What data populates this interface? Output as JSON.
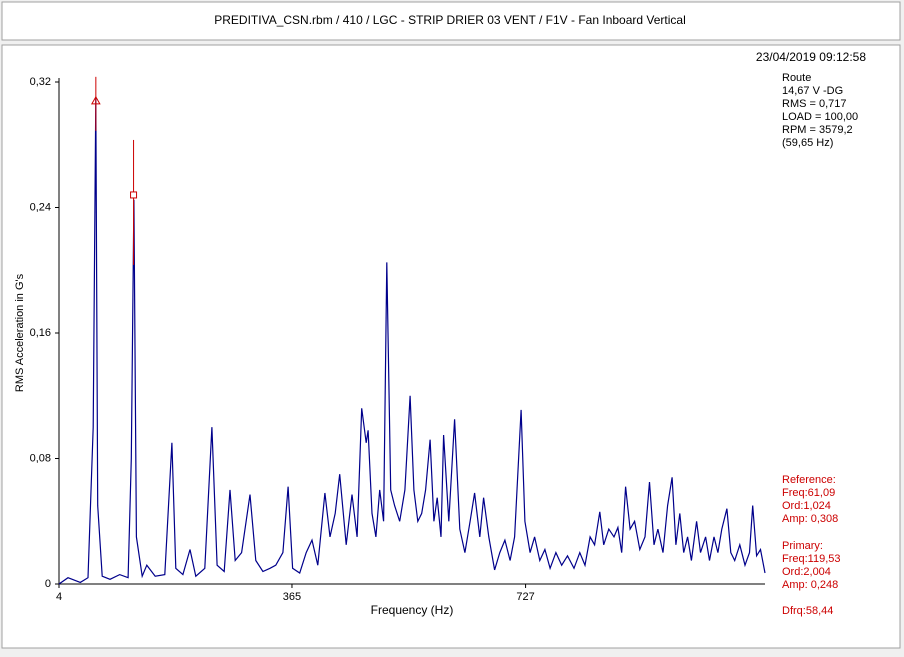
{
  "chart_data": {
    "type": "line",
    "title": "PREDITIVA_CSN.rbm / 410 / LGC - STRIP DRIER 03 VENT / F1V - Fan Inboard Vertical",
    "timestamp": "23/04/2019 09:12:58",
    "info": [
      "Route",
      "14,67 V -DG",
      "RMS = 0,717",
      "LOAD = 100,00",
      "RPM = 3579,2",
      "(59,65 Hz)"
    ],
    "x_label": "Frequency (Hz)",
    "y_label": "RMS Acceleration in G's",
    "color": "#00008b",
    "xlim": [
      4,
      1098
    ],
    "xticks": [
      4,
      365,
      727
    ],
    "ylim": [
      0,
      0.32
    ],
    "yticks": [
      0,
      {
        "value": 0.08,
        "label": "0,08"
      },
      {
        "value": 0.16,
        "label": "0,16"
      },
      {
        "value": 0.24,
        "label": "0,24"
      },
      {
        "value": 0.32,
        "label": "0,32"
      }
    ],
    "x": [
      4,
      18,
      37,
      49,
      57,
      61,
      64,
      71,
      83,
      98,
      111,
      116,
      120,
      124,
      133,
      140,
      153,
      168,
      179,
      185,
      196,
      207,
      216,
      230,
      241,
      249,
      260,
      269,
      277,
      287,
      300,
      309,
      320,
      331,
      340,
      351,
      359,
      366,
      377,
      387,
      396,
      405,
      416,
      424,
      432,
      439,
      449,
      458,
      466,
      473,
      480,
      483,
      489,
      495,
      501,
      507,
      512,
      518,
      524,
      532,
      540,
      548,
      554,
      560,
      566,
      572,
      579,
      585,
      590,
      596,
      600,
      608,
      617,
      625,
      633,
      641,
      648,
      656,
      662,
      670,
      679,
      687,
      695,
      703,
      710,
      720,
      726,
      734,
      741,
      749,
      757,
      765,
      774,
      783,
      792,
      802,
      811,
      819,
      827,
      834,
      842,
      848,
      856,
      864,
      870,
      876,
      882,
      889,
      896,
      904,
      912,
      919,
      926,
      932,
      940,
      947,
      954,
      960,
      966,
      972,
      978,
      984,
      992,
      998,
      1006,
      1012,
      1019,
      1025,
      1031,
      1039,
      1045,
      1051,
      1059,
      1067,
      1074,
      1079,
      1085,
      1091,
      1098
    ],
    "values": [
      0,
      0.004,
      0.001,
      0.004,
      0.1,
      0.31,
      0.05,
      0.005,
      0.003,
      0.006,
      0.004,
      0.08,
      0.245,
      0.03,
      0.005,
      0.012,
      0.005,
      0.006,
      0.09,
      0.01,
      0.006,
      0.022,
      0.005,
      0.01,
      0.1,
      0.012,
      0.008,
      0.06,
      0.015,
      0.02,
      0.057,
      0.015,
      0.008,
      0.01,
      0.012,
      0.02,
      0.062,
      0.01,
      0.007,
      0.02,
      0.028,
      0.012,
      0.058,
      0.03,
      0.045,
      0.07,
      0.025,
      0.057,
      0.03,
      0.112,
      0.09,
      0.098,
      0.045,
      0.03,
      0.06,
      0.04,
      0.205,
      0.06,
      0.05,
      0.04,
      0.06,
      0.12,
      0.06,
      0.04,
      0.045,
      0.06,
      0.092,
      0.04,
      0.055,
      0.03,
      0.095,
      0.04,
      0.105,
      0.035,
      0.02,
      0.04,
      0.058,
      0.03,
      0.055,
      0.03,
      0.009,
      0.02,
      0.028,
      0.015,
      0.03,
      0.111,
      0.04,
      0.02,
      0.03,
      0.015,
      0.022,
      0.01,
      0.02,
      0.012,
      0.018,
      0.01,
      0.02,
      0.012,
      0.03,
      0.025,
      0.046,
      0.025,
      0.035,
      0.03,
      0.036,
      0.02,
      0.062,
      0.035,
      0.04,
      0.022,
      0.03,
      0.065,
      0.025,
      0.035,
      0.02,
      0.05,
      0.068,
      0.025,
      0.045,
      0.02,
      0.03,
      0.015,
      0.04,
      0.02,
      0.03,
      0.015,
      0.03,
      0.02,
      0.035,
      0.048,
      0.02,
      0.015,
      0.025,
      0.012,
      0.02,
      0.05,
      0.018,
      0.022,
      0.007
    ],
    "cursor_color": "#cc0000",
    "cursors": {
      "reference": {
        "heading": "Reference:",
        "freq_label": "Freq:61,09",
        "ord_label": "Ord:1,024",
        "amp_label": "Amp: 0,308",
        "freq": 61.09,
        "amp": 0.308
      },
      "primary": {
        "heading": "Primary:",
        "freq_label": "Freq:119,53",
        "ord_label": "Ord:2,004",
        "amp_label": "Amp: 0,248",
        "freq": 119.53,
        "amp": 0.248
      }
    },
    "dfrq_label": "Dfrq:58,44"
  }
}
